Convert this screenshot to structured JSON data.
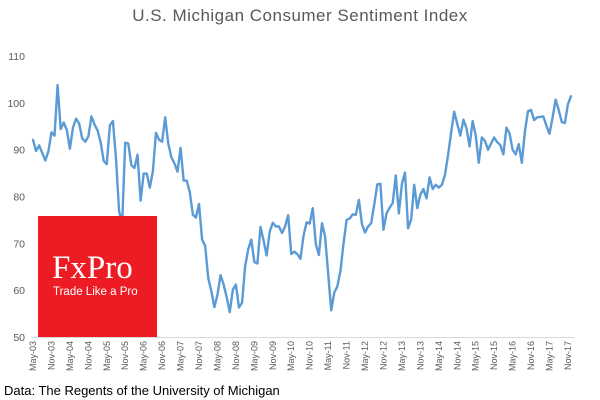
{
  "chart_data": {
    "type": "line",
    "title": "U.S. Michigan Consumer Sentiment Index",
    "source": "Data: The Regents of the University of Michigan",
    "xlabel": "",
    "ylabel": "",
    "ylim": [
      50,
      110
    ],
    "yticks": [
      50,
      60,
      70,
      80,
      90,
      100,
      110
    ],
    "grid": false,
    "x_ticks": [
      "May-03",
      "Nov-03",
      "May-04",
      "Nov-04",
      "May-05",
      "Nov-05",
      "May-06",
      "Nov-06",
      "May-07",
      "Nov-07",
      "May-08",
      "Nov-08",
      "May-09",
      "Nov-09",
      "May-10",
      "Nov-10",
      "May-11",
      "Nov-11",
      "May-12",
      "Nov-12",
      "May-13",
      "Nov-13",
      "May-14",
      "Nov-14",
      "May-15",
      "Nov-15",
      "May-16",
      "Nov-16",
      "May-17",
      "Nov-17"
    ],
    "line_color": "#5b9bd5",
    "series": [
      {
        "values": [
          92.1,
          89.7,
          90.9,
          89.3,
          87.7,
          89.6,
          93.7,
          93.0,
          103.8,
          94.4,
          95.8,
          94.2,
          90.2,
          94.7,
          96.6,
          95.6,
          92.4,
          91.7,
          92.8,
          97.1,
          95.4,
          94.1,
          91.6,
          87.6,
          86.9,
          95.2,
          96.1,
          88.1,
          76.9,
          74.2,
          91.5,
          91.3,
          86.7,
          86.1,
          88.9,
          79.1,
          84.9,
          84.9,
          81.9,
          85.4,
          93.6,
          92.1,
          91.7,
          96.9,
          91.3,
          88.4,
          87.1,
          85.3,
          90.4,
          83.4,
          83.4,
          80.9,
          76.1,
          75.5,
          78.4,
          70.8,
          69.5,
          62.6,
          59.8,
          56.4,
          59.0,
          63.2,
          61.2,
          58.5,
          55.3,
          60.1,
          61.2,
          56.3,
          57.3,
          65.1,
          68.7,
          70.8,
          66.0,
          65.7,
          73.5,
          70.6,
          67.4,
          72.5,
          74.4,
          73.6,
          73.6,
          72.2,
          73.6,
          76.0,
          67.7,
          68.2,
          67.7,
          66.7,
          71.6,
          74.5,
          74.2,
          77.5,
          69.8,
          67.5,
          74.3,
          71.5,
          63.7,
          55.7,
          59.5,
          60.8,
          64.1,
          69.9,
          75.0,
          75.3,
          76.2,
          76.1,
          79.3,
          74.1,
          72.3,
          73.6,
          74.3,
          78.3,
          82.6,
          82.7,
          72.9,
          76.4,
          77.6,
          78.6,
          84.5,
          76.4,
          82.7,
          85.1,
          73.2,
          75.1,
          82.5,
          77.5,
          80.4,
          81.6,
          79.6,
          84.1,
          81.6,
          82.5,
          81.9,
          82.5,
          84.6,
          88.8,
          93.6,
          98.1,
          95.5,
          93.0,
          96.4,
          94.6,
          90.7,
          96.1,
          93.1,
          87.2,
          92.6,
          91.9,
          90.0,
          91.3,
          92.6,
          91.6,
          91.0,
          89.0,
          94.7,
          93.5,
          90.0,
          89.0,
          91.2,
          87.2,
          93.8,
          98.2,
          98.5,
          96.3,
          96.9,
          97.0,
          97.1,
          95.1,
          93.4,
          96.8,
          100.7,
          98.5,
          95.9,
          95.7,
          99.7,
          101.4
        ]
      }
    ]
  },
  "watermark": {
    "brand": "FxPro",
    "tagline": "Trade Like a Pro",
    "color": "#ed1c24"
  }
}
